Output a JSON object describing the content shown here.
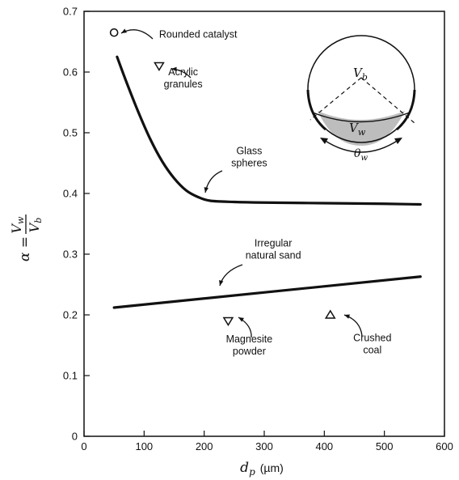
{
  "chart_data": {
    "type": "line",
    "xlabel": {
      "symbol": "d",
      "sub": "p",
      "unit": "(µm)"
    },
    "ylabel": {
      "lhs": "α = ",
      "num": "V",
      "num_sub": "w",
      "den": "V",
      "den_sub": "b"
    },
    "xlim": [
      0,
      600
    ],
    "ylim": [
      0,
      0.7
    ],
    "x_ticks": [
      "0",
      "100",
      "200",
      "300",
      "400",
      "500",
      "600"
    ],
    "y_ticks": [
      "0",
      "0.1",
      "0.2",
      "0.3",
      "0.4",
      "0.5",
      "0.6",
      "0.7"
    ],
    "grid": false,
    "series": [
      {
        "label": "Glass spheres",
        "points": [
          [
            55,
            0.625
          ],
          [
            70,
            0.585
          ],
          [
            90,
            0.535
          ],
          [
            110,
            0.49
          ],
          [
            130,
            0.453
          ],
          [
            150,
            0.425
          ],
          [
            170,
            0.405
          ],
          [
            190,
            0.394
          ],
          [
            210,
            0.388
          ],
          [
            250,
            0.386
          ],
          [
            300,
            0.385
          ],
          [
            400,
            0.384
          ],
          [
            500,
            0.383
          ],
          [
            560,
            0.382
          ]
        ]
      },
      {
        "label": "Irregular natural sand",
        "points": [
          [
            50,
            0.212
          ],
          [
            560,
            0.263
          ]
        ]
      }
    ],
    "markers": [
      {
        "label": "Rounded catalyst",
        "symbol": "circle",
        "x": 50,
        "y": 0.665
      },
      {
        "label": "Acrylic granules",
        "symbol": "triangle-down",
        "x": 125,
        "y": 0.61
      },
      {
        "label": "Magnesite powder",
        "symbol": "triangle-down",
        "x": 240,
        "y": 0.19
      },
      {
        "label": "Crushed coal",
        "symbol": "triangle-up",
        "x": 410,
        "y": 0.2
      }
    ],
    "annotations": [
      {
        "id": "rounded",
        "lines": [
          "Rounded catalyst"
        ],
        "x": 125,
        "y": 0.657,
        "anchor": "start"
      },
      {
        "id": "acrylic",
        "lines": [
          "Acrylic",
          "granules"
        ],
        "x": 165,
        "y": 0.595,
        "anchor": "middle"
      },
      {
        "id": "glass",
        "lines": [
          "Glass",
          "spheres"
        ],
        "x": 275,
        "y": 0.465,
        "anchor": "middle"
      },
      {
        "id": "sand",
        "lines": [
          "Irregular",
          "natural sand"
        ],
        "x": 315,
        "y": 0.313,
        "anchor": "middle"
      },
      {
        "id": "magnesite",
        "lines": [
          "Magnesite",
          "powder"
        ],
        "x": 275,
        "y": 0.155,
        "anchor": "middle"
      },
      {
        "id": "coal",
        "lines": [
          "Crushed",
          "coal"
        ],
        "x": 480,
        "y": 0.157,
        "anchor": "middle"
      }
    ],
    "inset": {
      "vb": "V",
      "vb_sub": "b",
      "vw": "V",
      "vw_sub": "w",
      "theta": "θ",
      "theta_sub": "w"
    }
  }
}
